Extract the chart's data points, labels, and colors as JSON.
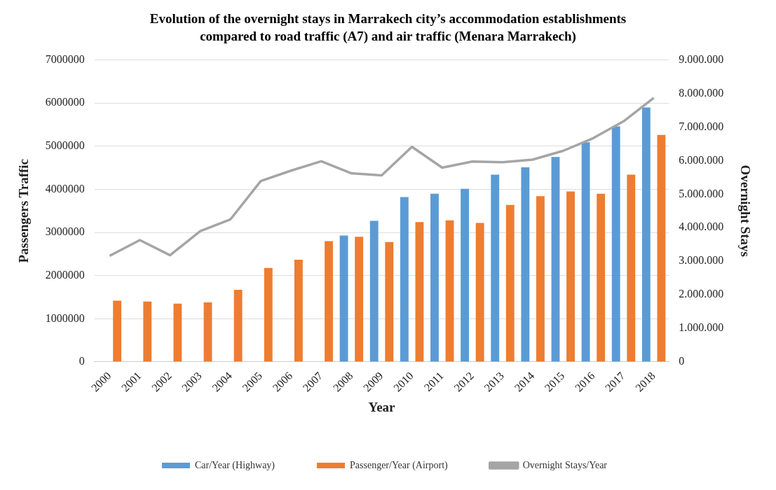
{
  "chart_data": {
    "type": "bar",
    "title": "Evolution of the overnight stays in Marrakech city’s accommodation establishments compared to road traffic (A7) and air traffic (Menara Marrakech)",
    "xlabel": "Year",
    "ylabel": "Passengers Traffic",
    "y2label": "Overnight Stays",
    "categories": [
      "2000",
      "2001",
      "2002",
      "2003",
      "2004",
      "2005",
      "2006",
      "2007",
      "2008",
      "2009",
      "2010",
      "2011",
      "2012",
      "2013",
      "2014",
      "2015",
      "2016",
      "2017",
      "2018"
    ],
    "series": [
      {
        "name": "Car/Year (Highway)",
        "color": "#5b9bd5",
        "values": [
          null,
          null,
          null,
          null,
          null,
          null,
          null,
          null,
          2930000,
          3270000,
          3820000,
          3900000,
          4010000,
          4340000,
          4510000,
          4750000,
          5090000,
          5460000,
          5900000
        ]
      },
      {
        "name": "Passenger/Year (Airport)",
        "color": "#ed7d31",
        "values": [
          1420000,
          1400000,
          1350000,
          1380000,
          1670000,
          2180000,
          2370000,
          2800000,
          2900000,
          2780000,
          3240000,
          3280000,
          3220000,
          3640000,
          3840000,
          3950000,
          3900000,
          4340000,
          5260000
        ]
      },
      {
        "name": "Overnight Stays/Year",
        "type": "line",
        "axis": "y2",
        "color": "#a5a5a5",
        "values": [
          3160000,
          3630000,
          3180000,
          3900000,
          4250000,
          5390000,
          5700000,
          5980000,
          5620000,
          5560000,
          6410000,
          5790000,
          5970000,
          5950000,
          6030000,
          6290000,
          6670000,
          7170000,
          7870000
        ]
      }
    ],
    "ylim": [
      0,
      7000000
    ],
    "yticks": [
      0,
      1000000,
      2000000,
      3000000,
      4000000,
      5000000,
      6000000,
      7000000
    ],
    "y2lim": [
      0,
      9000000
    ],
    "y2ticks": [
      0,
      {
        "value": 1000000,
        "label": "1.000.000"
      },
      {
        "value": 2000000,
        "label": "2.000.000"
      },
      {
        "value": 3000000,
        "label": "3.000.000"
      },
      {
        "value": 4000000,
        "label": "4.000.000"
      },
      {
        "value": 5000000,
        "label": "5.000.000"
      },
      {
        "value": 6000000,
        "label": "6.000.000"
      },
      {
        "value": 7000000,
        "label": "7.000.000"
      },
      {
        "value": 8000000,
        "label": "8.000.000"
      },
      {
        "value": 9000000,
        "label": "9.000.000"
      }
    ],
    "grid": "y",
    "legend": "bottom",
    "marker": "none"
  }
}
